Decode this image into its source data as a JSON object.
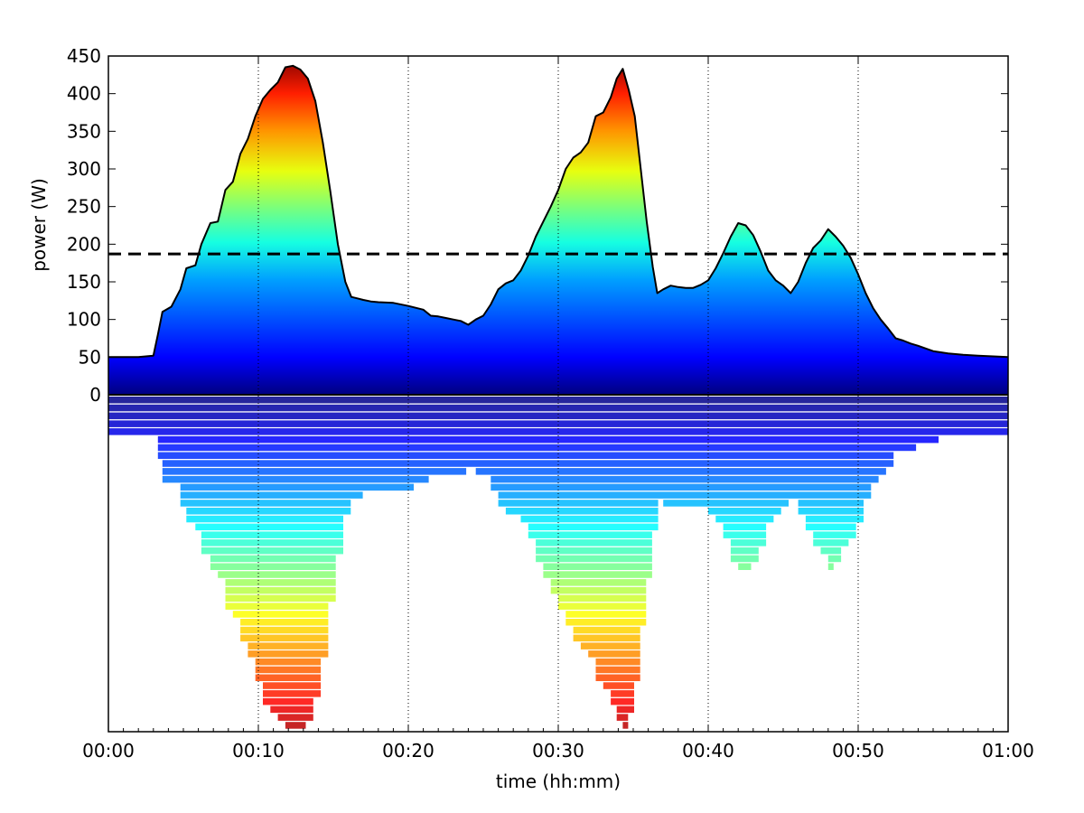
{
  "chart_data": {
    "type": "area",
    "xlabel": "time (hh:mm)",
    "ylabel": "power (W)",
    "x_unit": "minutes",
    "xlim": [
      0,
      60
    ],
    "ylim": [
      0,
      450
    ],
    "x_ticks": [
      0,
      10,
      20,
      30,
      40,
      50,
      60
    ],
    "x_tick_labels": [
      "00:00",
      "00:10",
      "00:20",
      "00:30",
      "00:40",
      "00:50",
      "01:00"
    ],
    "y_ticks": [
      0,
      50,
      100,
      150,
      200,
      250,
      300,
      350,
      400,
      450
    ],
    "y_tick_labels": [
      "0",
      "50",
      "100",
      "150",
      "200",
      "250",
      "300",
      "350",
      "400",
      "450"
    ],
    "grid": "vertical dotted at x ticks",
    "reference_line": {
      "value": 187,
      "style": "dashed"
    },
    "colormap": "jet",
    "series": [
      {
        "x": [
          0,
          1,
          2,
          3,
          3.3,
          3.6,
          4.2,
          4.8,
          5.2,
          5.8,
          6.2,
          6.8,
          7.3,
          7.8,
          8.3,
          8.8,
          9.3,
          9.8,
          10.3,
          10.8,
          11.3,
          11.8,
          12.3,
          12.8,
          13.3,
          13.8,
          14.3,
          14.8,
          15.3,
          15.8,
          16.2,
          16.6,
          17.0,
          17.5,
          18,
          19,
          20,
          21,
          21.5,
          22,
          22.5,
          23,
          23.5,
          24,
          24.5,
          25,
          25.5,
          26,
          26.5,
          27,
          27.5,
          28,
          28.5,
          29,
          29.5,
          30,
          30.5,
          31,
          31.5,
          32,
          32.5,
          33,
          33.5,
          33.9,
          34.3,
          34.7,
          35.1,
          35.5,
          35.9,
          36.3,
          36.6,
          37,
          37.5,
          38,
          38.5,
          39,
          39.5,
          40,
          40.5,
          41,
          41.5,
          42,
          42.5,
          43,
          43.5,
          44,
          44.5,
          45,
          45.5,
          46,
          46.5,
          47,
          47.5,
          48,
          48.5,
          49,
          49.5,
          50,
          50.5,
          51,
          51.5,
          52,
          52.5,
          53,
          53.5,
          54,
          55,
          56,
          57,
          58,
          59,
          60
        ],
        "y": [
          50,
          50,
          50,
          52,
          80,
          110,
          117,
          140,
          168,
          172,
          200,
          228,
          230,
          272,
          283,
          320,
          340,
          370,
          393,
          405,
          415,
          435,
          437,
          432,
          420,
          390,
          335,
          270,
          200,
          150,
          130,
          128,
          126,
          124,
          123,
          122,
          118,
          113,
          105,
          104,
          102,
          100,
          98,
          93,
          100,
          105,
          120,
          140,
          148,
          152,
          165,
          185,
          210,
          230,
          250,
          272,
          300,
          315,
          322,
          335,
          370,
          375,
          395,
          420,
          433,
          405,
          370,
          300,
          230,
          170,
          135,
          140,
          145,
          143,
          142,
          142,
          146,
          152,
          168,
          188,
          210,
          228,
          225,
          212,
          190,
          165,
          152,
          145,
          135,
          150,
          175,
          195,
          205,
          220,
          210,
          198,
          182,
          160,
          135,
          115,
          100,
          88,
          75,
          72,
          68,
          65,
          58,
          55,
          53,
          52,
          51,
          50
        ]
      }
    ],
    "lower_panel": "stacked histogram bands colored by power level (colormap jet), no printed values"
  }
}
